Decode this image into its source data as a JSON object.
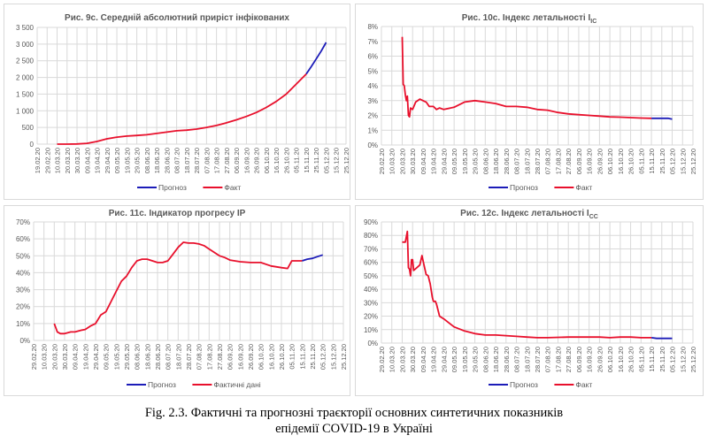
{
  "caption": {
    "line1": "Fig. 2.3. Фактичні та прогнозні траєкторії основних синтетичних показників",
    "line2": "епідемії COVID-19 в Україні"
  },
  "colors": {
    "forecast": "#1c1cb8",
    "fact": "#e8102c",
    "grid": "#d9d9d9",
    "axis_text": "#595959"
  },
  "chart_data": [
    {
      "type": "line",
      "title": "Рис. 9с. Середній абсолютний приріст інфікованих",
      "title_sub": "",
      "x_ticks": [
        "19.02.20",
        "29.02.20",
        "10.03.20",
        "20.03.20",
        "30.03.20",
        "09.04.20",
        "19.04.20",
        "29.04.20",
        "09.05.20",
        "19.05.20",
        "29.05.20",
        "08.06.20",
        "18.06.20",
        "28.06.20",
        "08.07.20",
        "18.07.20",
        "28.07.20",
        "07.08.20",
        "17.08.20",
        "27.08.20",
        "06.09.20",
        "16.09.20",
        "26.09.20",
        "06.10.20",
        "16.10.20",
        "26.10.20",
        "05.11.20",
        "15.11.20",
        "25.11.20",
        "05.12.20",
        "15.12.20",
        "25.12.20"
      ],
      "y_ticks": [
        "0",
        "500",
        "1 000",
        "1 500",
        "2 000",
        "2 500",
        "3 000",
        "3 500"
      ],
      "ylim": [
        0,
        3500
      ],
      "y_step": 500,
      "y_format": "number",
      "grid": true,
      "legend": "bottom",
      "series": [
        {
          "name": "Прогноз",
          "color_key": "forecast",
          "points": [
            [
              "15.11.20",
              2100
            ],
            [
              "20.11.20",
              2320
            ],
            [
              "25.11.20",
              2550
            ],
            [
              "30.11.20",
              2790
            ],
            [
              "05.12.20",
              3050
            ]
          ]
        },
        {
          "name": "Факт",
          "color_key": "fact",
          "points": [
            [
              "10.03.20",
              0
            ],
            [
              "20.03.20",
              1
            ],
            [
              "30.03.20",
              5
            ],
            [
              "09.04.20",
              25
            ],
            [
              "19.04.20",
              80
            ],
            [
              "29.04.20",
              160
            ],
            [
              "09.05.20",
              210
            ],
            [
              "19.05.20",
              240
            ],
            [
              "29.05.20",
              260
            ],
            [
              "08.06.20",
              280
            ],
            [
              "18.06.20",
              320
            ],
            [
              "28.06.20",
              360
            ],
            [
              "08.07.20",
              400
            ],
            [
              "18.07.20",
              420
            ],
            [
              "28.07.20",
              450
            ],
            [
              "07.08.20",
              500
            ],
            [
              "17.08.20",
              560
            ],
            [
              "27.08.20",
              640
            ],
            [
              "06.09.20",
              730
            ],
            [
              "16.09.20",
              830
            ],
            [
              "26.09.20",
              950
            ],
            [
              "06.10.20",
              1100
            ],
            [
              "16.10.20",
              1280
            ],
            [
              "26.10.20",
              1500
            ],
            [
              "05.11.20",
              1800
            ],
            [
              "15.11.20",
              2100
            ]
          ]
        }
      ]
    },
    {
      "type": "line",
      "title": "Рис. 10с.  Індекс летальності I",
      "title_sub": "IC",
      "x_ticks": [
        "29.02.20",
        "10.03.20",
        "20.03.20",
        "30.03.20",
        "09.04.20",
        "19.04.20",
        "29.04.20",
        "09.05.20",
        "19.05.20",
        "29.05.20",
        "08.06.20",
        "18.06.20",
        "28.06.20",
        "08.07.20",
        "18.07.20",
        "28.07.20",
        "07.08.20",
        "17.08.20",
        "27.08.20",
        "06.09.20",
        "16.09.20",
        "26.09.20",
        "06.10.20",
        "16.10.20",
        "26.10.20",
        "05.11.20",
        "15.11.20",
        "25.11.20",
        "05.12.20",
        "15.12.20",
        "25.12.20"
      ],
      "y_ticks": [
        "0%",
        "1%",
        "2%",
        "3%",
        "4%",
        "5%",
        "6%",
        "7%",
        "8%"
      ],
      "ylim": [
        0,
        8
      ],
      "y_step": 1,
      "grid": true,
      "legend": "bottom",
      "series": [
        {
          "name": "Прогноз",
          "color_key": "forecast",
          "points": [
            [
              "15.11.20",
              1.8
            ],
            [
              "25.11.20",
              1.8
            ],
            [
              "01.12.20",
              1.8
            ],
            [
              "05.12.20",
              1.75
            ]
          ]
        },
        {
          "name": "Факт",
          "color_key": "fact",
          "points": [
            [
              "20.03.20",
              7.3
            ],
            [
              "21.03.20",
              4.1
            ],
            [
              "22.03.20",
              4.0
            ],
            [
              "23.03.20",
              3.4
            ],
            [
              "24.03.20",
              3.0
            ],
            [
              "25.03.20",
              3.3
            ],
            [
              "26.03.20",
              2.0
            ],
            [
              "27.03.20",
              1.9
            ],
            [
              "28.03.20",
              2.5
            ],
            [
              "30.03.20",
              2.4
            ],
            [
              "02.04.20",
              2.9
            ],
            [
              "06.04.20",
              3.1
            ],
            [
              "09.04.20",
              3.0
            ],
            [
              "12.04.20",
              2.9
            ],
            [
              "15.04.20",
              2.6
            ],
            [
              "19.04.20",
              2.6
            ],
            [
              "22.04.20",
              2.4
            ],
            [
              "25.04.20",
              2.5
            ],
            [
              "29.04.20",
              2.4
            ],
            [
              "09.05.20",
              2.55
            ],
            [
              "19.05.20",
              2.9
            ],
            [
              "29.05.20",
              3.0
            ],
            [
              "08.06.20",
              2.9
            ],
            [
              "18.06.20",
              2.8
            ],
            [
              "28.06.20",
              2.6
            ],
            [
              "08.07.20",
              2.6
            ],
            [
              "18.07.20",
              2.55
            ],
            [
              "28.07.20",
              2.4
            ],
            [
              "07.08.20",
              2.35
            ],
            [
              "17.08.20",
              2.2
            ],
            [
              "27.08.20",
              2.1
            ],
            [
              "06.09.20",
              2.05
            ],
            [
              "16.09.20",
              2.0
            ],
            [
              "26.09.20",
              1.95
            ],
            [
              "06.10.20",
              1.9
            ],
            [
              "16.10.20",
              1.88
            ],
            [
              "26.10.20",
              1.85
            ],
            [
              "05.11.20",
              1.82
            ],
            [
              "15.11.20",
              1.8
            ]
          ]
        }
      ]
    },
    {
      "type": "line",
      "title": "Рис. 11с.  Індикатор прогресу IP",
      "title_sub": "",
      "x_ticks": [
        "29.02.20",
        "10.03.20",
        "20.03.20",
        "30.03.20",
        "09.04.20",
        "19.04.20",
        "29.04.20",
        "09.05.20",
        "19.05.20",
        "29.05.20",
        "08.06.20",
        "18.06.20",
        "28.06.20",
        "08.07.20",
        "18.07.20",
        "28.07.20",
        "07.08.20",
        "17.08.20",
        "27.08.20",
        "06.09.20",
        "16.09.20",
        "26.09.20",
        "06.10.20",
        "16.10.20",
        "26.10.20",
        "05.11.20",
        "15.11.20",
        "25.11.20",
        "05.12.20",
        "15.12.20",
        "25.12.20"
      ],
      "y_ticks": [
        "0%",
        "10%",
        "20%",
        "30%",
        "40%",
        "50%",
        "60%",
        "70%"
      ],
      "ylim": [
        0,
        70
      ],
      "y_step": 10,
      "grid": true,
      "legend": "bottom",
      "series": [
        {
          "name": "Прогноз",
          "color_key": "forecast",
          "points": [
            [
              "15.11.20",
              47
            ],
            [
              "20.11.20",
              48
            ],
            [
              "25.11.20",
              48.5
            ],
            [
              "30.11.20",
              49.5
            ],
            [
              "05.12.20",
              50.5
            ]
          ]
        },
        {
          "name": "Фактичні дані",
          "color_key": "fact",
          "points": [
            [
              "20.03.20",
              10
            ],
            [
              "23.03.20",
              5
            ],
            [
              "26.03.20",
              4
            ],
            [
              "30.03.20",
              4
            ],
            [
              "05.04.20",
              5
            ],
            [
              "09.04.20",
              5
            ],
            [
              "15.04.20",
              6
            ],
            [
              "19.04.20",
              6.5
            ],
            [
              "24.04.20",
              8.5
            ],
            [
              "29.04.20",
              10
            ],
            [
              "04.05.20",
              15
            ],
            [
              "09.05.20",
              17
            ],
            [
              "14.05.20",
              23
            ],
            [
              "19.05.20",
              29
            ],
            [
              "24.05.20",
              35
            ],
            [
              "29.05.20",
              38
            ],
            [
              "03.06.20",
              43
            ],
            [
              "08.06.20",
              47
            ],
            [
              "13.06.20",
              48
            ],
            [
              "18.06.20",
              48
            ],
            [
              "23.06.20",
              47
            ],
            [
              "28.06.20",
              46
            ],
            [
              "03.07.20",
              46
            ],
            [
              "08.07.20",
              47
            ],
            [
              "13.07.20",
              51
            ],
            [
              "18.07.20",
              55
            ],
            [
              "23.07.20",
              58
            ],
            [
              "28.07.20",
              57.5
            ],
            [
              "02.08.20",
              57.5
            ],
            [
              "07.08.20",
              57
            ],
            [
              "12.08.20",
              56
            ],
            [
              "17.08.20",
              54
            ],
            [
              "22.08.20",
              52
            ],
            [
              "27.08.20",
              50
            ],
            [
              "01.09.20",
              49
            ],
            [
              "06.09.20",
              47.5
            ],
            [
              "16.09.20",
              46.5
            ],
            [
              "26.09.20",
              46
            ],
            [
              "06.10.20",
              46
            ],
            [
              "16.10.20",
              44
            ],
            [
              "26.10.20",
              43
            ],
            [
              "01.11.20",
              42.5
            ],
            [
              "05.11.20",
              47
            ],
            [
              "10.11.20",
              47
            ],
            [
              "15.11.20",
              47
            ]
          ]
        }
      ]
    },
    {
      "type": "line",
      "title": "Рис. 12с.  Індекс летальності I",
      "title_sub": "CC",
      "x_ticks": [
        "29.02.20",
        "10.03.20",
        "20.03.20",
        "30.03.20",
        "09.04.20",
        "19.04.20",
        "29.04.20",
        "09.05.20",
        "19.05.20",
        "29.05.20",
        "08.06.20",
        "18.06.20",
        "28.06.20",
        "08.07.20",
        "18.07.20",
        "28.07.20",
        "07.08.20",
        "17.08.20",
        "27.08.20",
        "06.09.20",
        "16.09.20",
        "26.09.20",
        "06.10.20",
        "16.10.20",
        "26.10.20",
        "05.11.20",
        "15.11.20",
        "25.11.20",
        "05.12.20",
        "15.12.20",
        "25.12.20"
      ],
      "y_ticks": [
        "0%",
        "10%",
        "20%",
        "30%",
        "40%",
        "50%",
        "60%",
        "70%",
        "80%",
        "90%"
      ],
      "ylim": [
        0,
        90
      ],
      "y_step": 10,
      "grid": true,
      "legend": "bottom",
      "series": [
        {
          "name": "Прогноз",
          "color_key": "forecast",
          "points": [
            [
              "15.11.20",
              4
            ],
            [
              "20.11.20",
              3.5
            ],
            [
              "05.12.20",
              3.5
            ]
          ]
        },
        {
          "name": "Факт",
          "color_key": "fact",
          "points": [
            [
              "20.03.20",
              75
            ],
            [
              "23.03.20",
              75
            ],
            [
              "25.03.20",
              83
            ],
            [
              "26.03.20",
              56
            ],
            [
              "27.03.20",
              55
            ],
            [
              "28.03.20",
              50
            ],
            [
              "29.03.20",
              62
            ],
            [
              "30.03.20",
              62
            ],
            [
              "31.03.20",
              54
            ],
            [
              "03.04.20",
              56
            ],
            [
              "06.04.20",
              58
            ],
            [
              "08.04.20",
              65
            ],
            [
              "10.04.20",
              58
            ],
            [
              "12.04.20",
              51
            ],
            [
              "14.04.20",
              50
            ],
            [
              "16.04.20",
              44
            ],
            [
              "18.04.20",
              34
            ],
            [
              "19.04.20",
              31
            ],
            [
              "21.04.20",
              31
            ],
            [
              "22.04.20",
              29
            ],
            [
              "25.04.20",
              20
            ],
            [
              "29.04.20",
              18
            ],
            [
              "04.05.20",
              15
            ],
            [
              "09.05.20",
              12
            ],
            [
              "19.05.20",
              9
            ],
            [
              "29.05.20",
              7
            ],
            [
              "08.06.20",
              6
            ],
            [
              "18.06.20",
              6
            ],
            [
              "28.06.20",
              5.5
            ],
            [
              "08.07.20",
              5
            ],
            [
              "18.07.20",
              4.5
            ],
            [
              "28.07.20",
              4
            ],
            [
              "07.08.20",
              4
            ],
            [
              "27.08.20",
              4.5
            ],
            [
              "26.09.20",
              4.5
            ],
            [
              "06.10.20",
              4
            ],
            [
              "16.10.20",
              4.5
            ],
            [
              "26.10.20",
              4.5
            ],
            [
              "05.11.20",
              4
            ],
            [
              "15.11.20",
              4
            ]
          ]
        }
      ]
    }
  ]
}
